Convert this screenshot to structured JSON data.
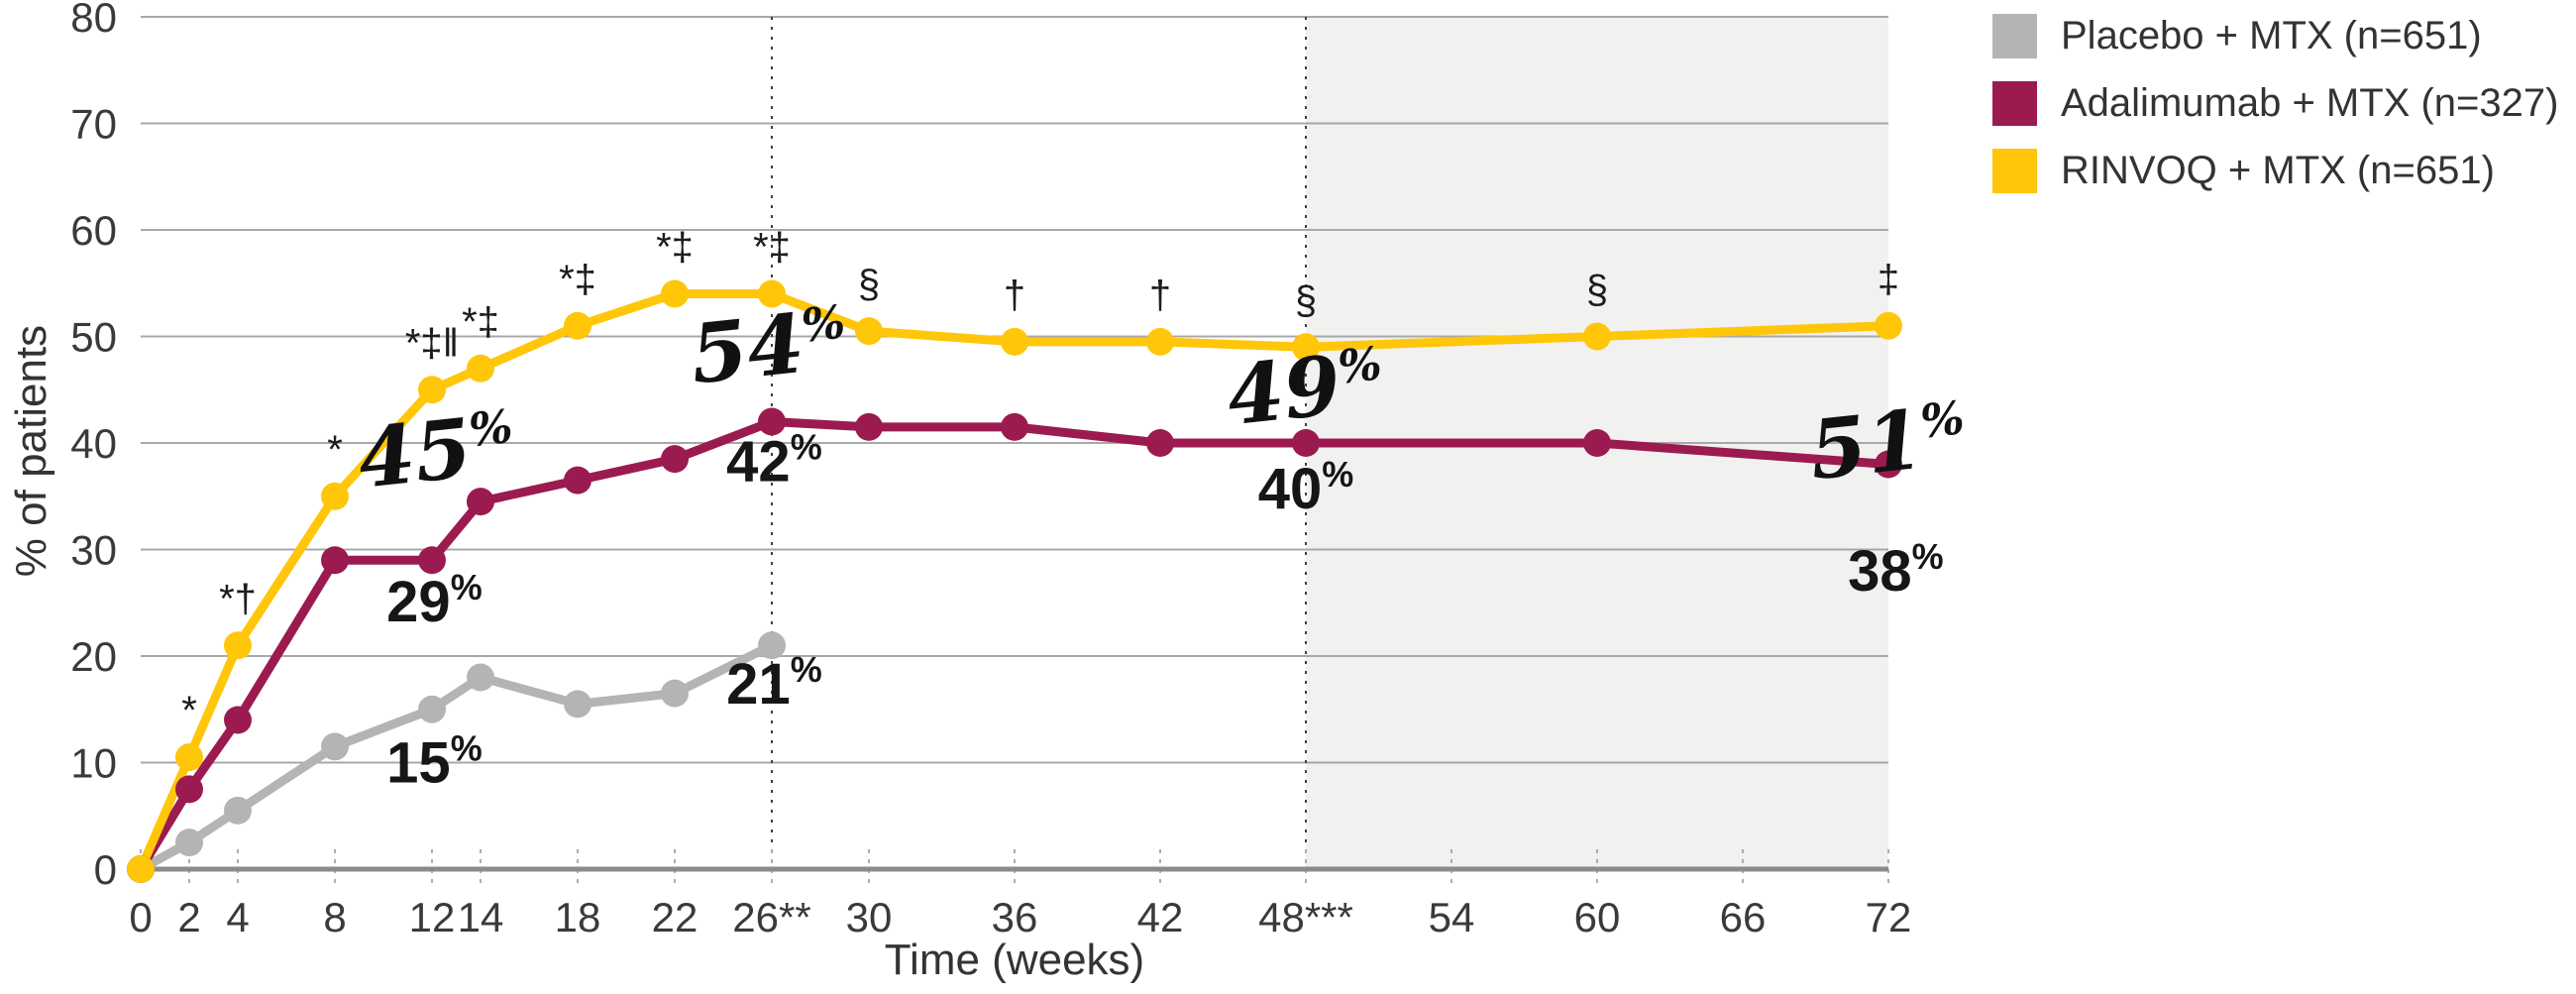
{
  "chart_data": {
    "type": "line",
    "title": "",
    "xlabel": "Time (weeks)",
    "ylabel": "% of patients",
    "xlim": [
      0,
      72
    ],
    "ylim": [
      0,
      80
    ],
    "grid": "horizontal",
    "legend_position": "top-right",
    "y_ticks": [
      0,
      10,
      20,
      30,
      40,
      50,
      60,
      70,
      80
    ],
    "x_ticks": [
      {
        "week": 0,
        "label": "0"
      },
      {
        "week": 2,
        "label": "2"
      },
      {
        "week": 4,
        "label": "4"
      },
      {
        "week": 8,
        "label": "8"
      },
      {
        "week": 12,
        "label": "12"
      },
      {
        "week": 14,
        "label": "14"
      },
      {
        "week": 18,
        "label": "18"
      },
      {
        "week": 22,
        "label": "22"
      },
      {
        "week": 26,
        "label": "26**"
      },
      {
        "week": 30,
        "label": "30"
      },
      {
        "week": 36,
        "label": "36"
      },
      {
        "week": 42,
        "label": "42"
      },
      {
        "week": 48,
        "label": "48***"
      },
      {
        "week": 54,
        "label": "54"
      },
      {
        "week": 60,
        "label": "60"
      },
      {
        "week": 66,
        "label": "66"
      },
      {
        "week": 72,
        "label": "72"
      }
    ],
    "dotted_vlines_weeks": [
      26,
      48
    ],
    "shaded_region": {
      "from_week": 48,
      "to_week": 72,
      "color": "#f1f1ef"
    },
    "series": [
      {
        "name": "Placebo + MTX (n=651)",
        "slug": "placebo",
        "color": "#b4b4b6",
        "weeks": [
          0,
          2,
          4,
          8,
          12,
          14,
          18,
          22,
          26
        ],
        "values": [
          0,
          2.5,
          5.5,
          11.5,
          15,
          18,
          15.5,
          16.5,
          21
        ]
      },
      {
        "name": "Adalimumab + MTX (n=327)",
        "slug": "adalimumab",
        "color": "#9b1b50",
        "weeks": [
          0,
          2,
          4,
          8,
          12,
          14,
          18,
          22,
          26,
          30,
          36,
          42,
          48,
          60,
          72
        ],
        "values": [
          0,
          7.5,
          14,
          29,
          29,
          34.5,
          36.5,
          38.5,
          42,
          41.5,
          41.5,
          40,
          40,
          40,
          38
        ]
      },
      {
        "name": "RINVOQ + MTX (n=651)",
        "slug": "rinvoq",
        "color": "#ffc60a",
        "weeks": [
          0,
          2,
          4,
          8,
          12,
          14,
          18,
          22,
          26,
          30,
          36,
          42,
          48,
          60,
          72
        ],
        "values": [
          0,
          10.5,
          21,
          35,
          45,
          47,
          51,
          54,
          54,
          50.5,
          49.5,
          49.5,
          49,
          50,
          51
        ]
      }
    ],
    "significance_markers": [
      {
        "week": 2,
        "series": "rinvoq",
        "text": "*"
      },
      {
        "week": 4,
        "series": "rinvoq",
        "text": "*†"
      },
      {
        "week": 8,
        "series": "rinvoq",
        "text": "*"
      },
      {
        "week": 12,
        "series": "rinvoq",
        "text": "*‡‖"
      },
      {
        "week": 14,
        "series": "rinvoq",
        "text": "*‡"
      },
      {
        "week": 18,
        "series": "rinvoq",
        "text": "*‡"
      },
      {
        "week": 22,
        "series": "rinvoq",
        "text": "*‡"
      },
      {
        "week": 26,
        "series": "rinvoq",
        "text": "*‡"
      },
      {
        "week": 30,
        "series": "rinvoq",
        "text": "§"
      },
      {
        "week": 36,
        "series": "rinvoq",
        "text": "†"
      },
      {
        "week": 42,
        "series": "rinvoq",
        "text": "†"
      },
      {
        "week": 48,
        "series": "rinvoq",
        "text": "§"
      },
      {
        "week": 60,
        "series": "rinvoq",
        "text": "§"
      },
      {
        "week": 72,
        "series": "rinvoq",
        "text": "‡"
      }
    ],
    "value_labels": [
      {
        "digits": "15",
        "suffix": "%",
        "style": "bold",
        "series": "placebo",
        "week": 12.1,
        "value": 10.0
      },
      {
        "digits": "29",
        "suffix": "%",
        "style": "bold",
        "series": "adalimumab",
        "week": 12.1,
        "value": 25.1
      },
      {
        "digits": "45",
        "suffix": "%",
        "style": "script",
        "series": "rinvoq",
        "week": 12.3,
        "value": 39.2
      },
      {
        "digits": "21",
        "suffix": "%",
        "style": "bold",
        "series": "placebo",
        "week": 26.1,
        "value": 17.4
      },
      {
        "digits": "42",
        "suffix": "%",
        "style": "bold",
        "series": "adalimumab",
        "week": 26.1,
        "value": 38.3
      },
      {
        "digits": "54",
        "suffix": "%",
        "style": "script",
        "series": "rinvoq",
        "week": 26.0,
        "value": 49.0
      },
      {
        "digits": "40",
        "suffix": "%",
        "style": "bold",
        "series": "adalimumab",
        "week": 48.0,
        "value": 35.7
      },
      {
        "digits": "49",
        "suffix": "%",
        "style": "script",
        "series": "rinvoq",
        "week": 48.1,
        "value": 45.1
      },
      {
        "digits": "38",
        "suffix": "%",
        "style": "bold",
        "series": "adalimumab",
        "week": 72.3,
        "value": 28.0
      },
      {
        "digits": "51",
        "suffix": "%",
        "style": "script",
        "series": "rinvoq",
        "week": 72.1,
        "value": 40.0
      }
    ]
  }
}
